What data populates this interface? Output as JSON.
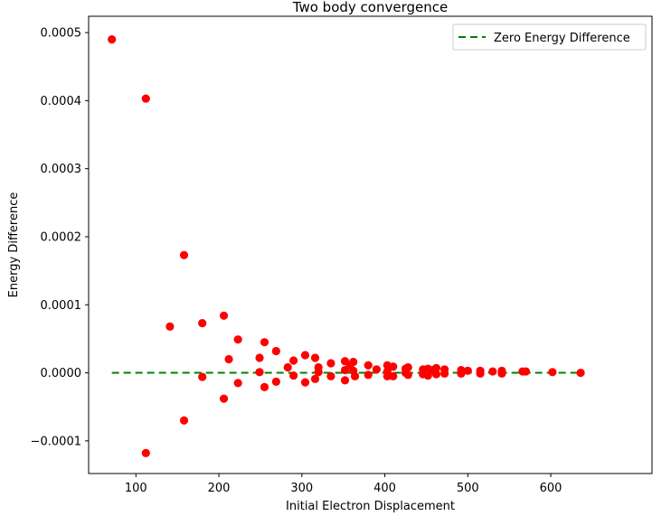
{
  "chart_data": {
    "type": "scatter",
    "title": "Two body convergence",
    "xlabel": "Initial Electron Displacement",
    "ylabel": "Energy Difference",
    "xlim": [
      43,
      722
    ],
    "ylim": [
      -0.000148,
      0.000524
    ],
    "xticks": [
      100,
      200,
      300,
      400,
      500,
      600
    ],
    "xtick_labels": [
      "100",
      "200",
      "300",
      "400",
      "500",
      "600"
    ],
    "yticks": [
      -0.0001,
      0.0,
      0.0001,
      0.0002,
      0.0003,
      0.0004,
      0.0005
    ],
    "ytick_labels": [
      "−0.0001",
      "0.0000",
      "0.0001",
      "0.0002",
      "0.0003",
      "0.0004",
      "0.0005"
    ],
    "legend_position": "top-right",
    "grid": false,
    "series": [
      {
        "kind": "scatter",
        "color": "#ff0000",
        "points": [
          [
            71,
            0.00049
          ],
          [
            112,
            0.000403
          ],
          [
            112,
            -0.000118
          ],
          [
            141,
            6.8e-05
          ],
          [
            158,
            0.000173
          ],
          [
            158,
            -7e-05
          ],
          [
            180,
            7.3e-05
          ],
          [
            180,
            -6e-06
          ],
          [
            206,
            8.4e-05
          ],
          [
            206,
            -3.8e-05
          ],
          [
            212,
            2e-05
          ],
          [
            223,
            4.9e-05
          ],
          [
            223,
            -1.5e-05
          ],
          [
            249,
            2.2e-05
          ],
          [
            249,
            1e-06
          ],
          [
            255,
            4.5e-05
          ],
          [
            255,
            -2.1e-05
          ],
          [
            269,
            3.2e-05
          ],
          [
            269,
            -1.3e-05
          ],
          [
            283,
            8e-06
          ],
          [
            290,
            1.8e-05
          ],
          [
            290,
            -4e-06
          ],
          [
            304,
            2.6e-05
          ],
          [
            304,
            -1.4e-05
          ],
          [
            316,
            2.2e-05
          ],
          [
            316,
            -9e-06
          ],
          [
            320,
            8e-06
          ],
          [
            320,
            1e-06
          ],
          [
            335,
            1.4e-05
          ],
          [
            335,
            -5e-06
          ],
          [
            352,
            1.7e-05
          ],
          [
            352,
            4e-06
          ],
          [
            352,
            -1.1e-05
          ],
          [
            358,
            1.1e-05
          ],
          [
            362,
            1.6e-05
          ],
          [
            362,
            3e-06
          ],
          [
            364,
            -5e-06
          ],
          [
            380,
            1.1e-05
          ],
          [
            380,
            -3e-06
          ],
          [
            390,
            5e-06
          ],
          [
            403,
            1.1e-05
          ],
          [
            403,
            2e-06
          ],
          [
            403,
            -5e-06
          ],
          [
            410,
            9e-06
          ],
          [
            410,
            -5e-06
          ],
          [
            425,
            6e-06
          ],
          [
            425,
            0.0
          ],
          [
            428,
            8e-06
          ],
          [
            428,
            -3e-06
          ],
          [
            446,
            5e-06
          ],
          [
            446,
            -2e-06
          ],
          [
            452,
            6e-06
          ],
          [
            452,
            -4e-06
          ],
          [
            458,
            4e-06
          ],
          [
            462,
            7e-06
          ],
          [
            462,
            -2e-06
          ],
          [
            472,
            5e-06
          ],
          [
            472,
            -1e-06
          ],
          [
            492,
            4e-06
          ],
          [
            492,
            -1e-06
          ],
          [
            500,
            3e-06
          ],
          [
            515,
            3e-06
          ],
          [
            515,
            -1e-06
          ],
          [
            530,
            2e-06
          ],
          [
            541,
            3e-06
          ],
          [
            541,
            -1e-06
          ],
          [
            566,
            2e-06
          ],
          [
            570,
            2e-06
          ],
          [
            602,
            1e-06
          ],
          [
            636,
            0.0
          ]
        ]
      },
      {
        "kind": "line",
        "name": "Zero Energy Difference",
        "color": "#008000",
        "dash": "dashed",
        "points": [
          [
            71,
            0.0
          ],
          [
            636,
            0.0
          ]
        ]
      }
    ]
  }
}
